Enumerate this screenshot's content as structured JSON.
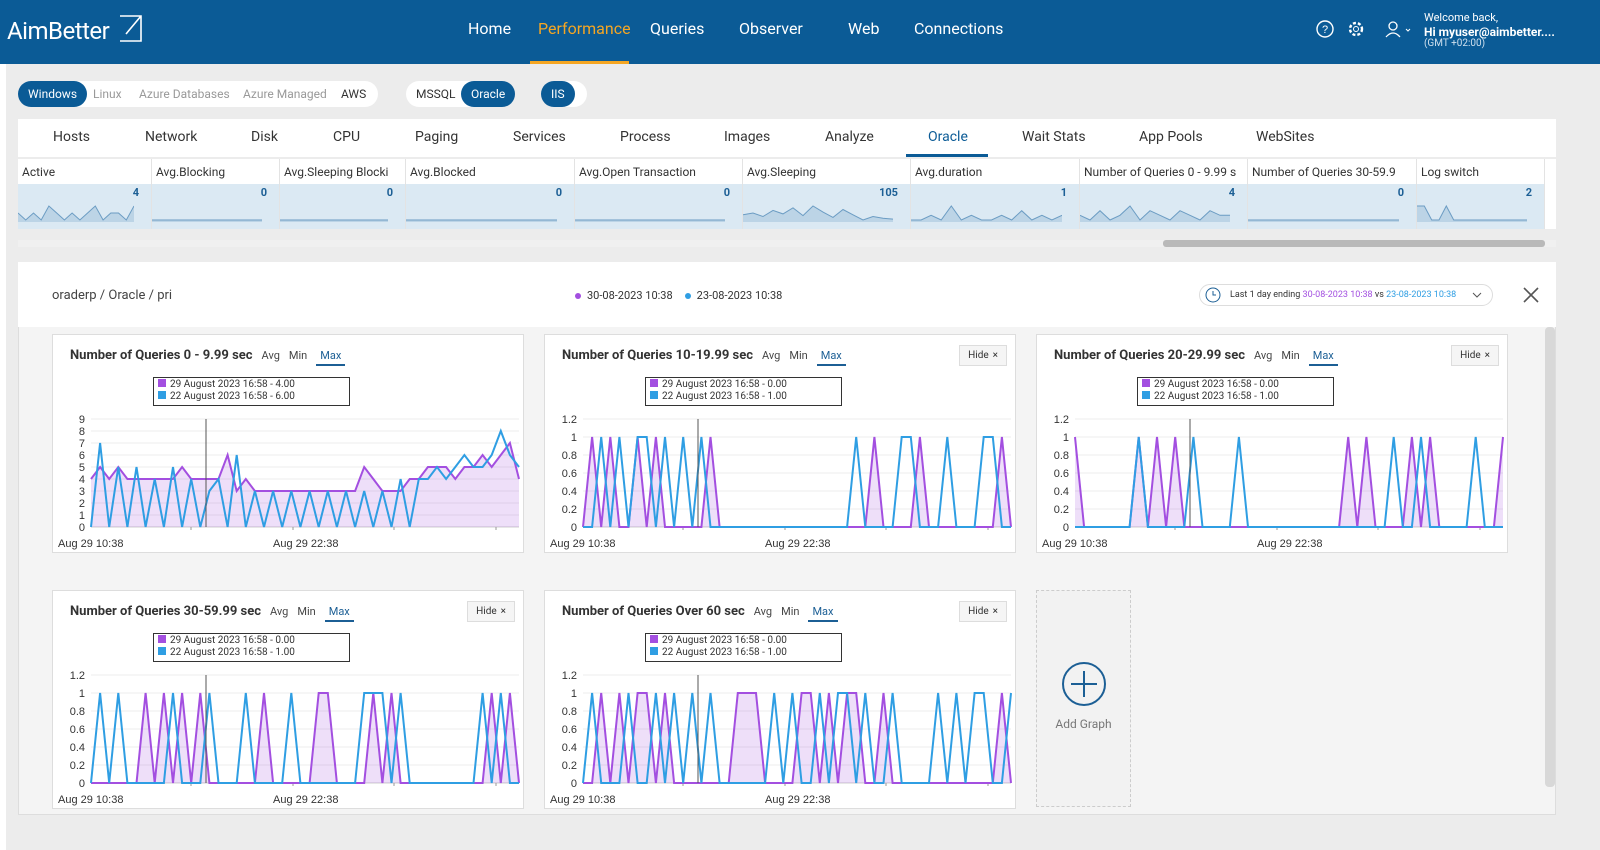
{
  "header": {
    "logo": "AimBetter",
    "nav": [
      "Home",
      "Performance",
      "Queries",
      "Observer",
      "Web",
      "Connections"
    ],
    "active_nav": 1,
    "welcome": "Welcome back,",
    "user": "Hi myuser@aimbetter....",
    "timezone": "(GMT +02:00)"
  },
  "platforms": [
    "Windows",
    "Linux",
    "Azure Databases",
    "Azure Managed",
    "AWS"
  ],
  "active_platform": 0,
  "databases": [
    "MSSQL",
    "Oracle"
  ],
  "active_database": 1,
  "web": [
    "IIS"
  ],
  "tabs": [
    "Hosts",
    "Network",
    "Disk",
    "CPU",
    "Paging",
    "Services",
    "Process",
    "Images",
    "Analyze",
    "Oracle",
    "Wait Stats",
    "App Pools",
    "WebSites"
  ],
  "active_tab": 9,
  "metrics": [
    {
      "name": "Active",
      "value": 4,
      "trend": [
        4,
        3,
        4,
        3,
        5,
        4,
        3,
        4,
        3,
        4,
        5,
        3,
        4,
        4,
        3,
        5
      ]
    },
    {
      "name": "Avg.Blocking",
      "value": 0,
      "trend": [
        0,
        0,
        0,
        0,
        0,
        0,
        0,
        0,
        0,
        0,
        0,
        0,
        0,
        0,
        0,
        0
      ]
    },
    {
      "name": "Avg.Sleeping Blocki",
      "value": 0,
      "trend": [
        0,
        0,
        0,
        0,
        0,
        0,
        0,
        0,
        0,
        0,
        0,
        0,
        0,
        0,
        0,
        0
      ]
    },
    {
      "name": "Avg.Blocked",
      "value": 0,
      "trend": [
        0,
        0,
        0,
        0,
        0,
        0,
        0,
        0,
        0,
        0,
        0,
        0,
        0,
        0,
        0,
        0
      ]
    },
    {
      "name": "Avg.Open Transaction",
      "value": 0,
      "trend": [
        0,
        0,
        0,
        0,
        0,
        0,
        0,
        0,
        0,
        0,
        0,
        0,
        0,
        0,
        0,
        0
      ]
    },
    {
      "name": "Avg.Sleeping",
      "value": 105,
      "trend": [
        110,
        112,
        108,
        115,
        111,
        118,
        109,
        120,
        113,
        107,
        116,
        110,
        104,
        108,
        106,
        105
      ]
    },
    {
      "name": "Avg.duration",
      "value": 1,
      "trend": [
        0,
        0,
        1,
        0,
        3,
        0,
        1,
        0,
        0,
        1,
        0,
        2,
        0,
        1,
        0,
        1
      ]
    },
    {
      "name": "Number of Queries 0 - 9.99 s",
      "value": 4,
      "trend": [
        4,
        3,
        5,
        3,
        4,
        6,
        3,
        5,
        4,
        3,
        5,
        4,
        3,
        5,
        4,
        4
      ]
    },
    {
      "name": "Number of Queries 30-59.9",
      "value": 0,
      "trend": [
        0,
        0,
        0,
        0,
        0,
        0,
        0,
        0,
        0,
        0,
        0,
        0,
        0,
        0,
        0,
        0
      ]
    },
    {
      "name": "Log switch",
      "value": 2,
      "trend": [
        5,
        5,
        2,
        2,
        5,
        2,
        2,
        2,
        2,
        2,
        2,
        2,
        2,
        2,
        2,
        2
      ]
    }
  ],
  "panel": {
    "breadcrumb": "oraderp / Oracle / pri",
    "compare": [
      {
        "date": "30-08-2023 10:38",
        "color": "#a34fe0"
      },
      {
        "date": "23-08-2023 10:38",
        "color": "#2f9ee3"
      }
    ],
    "range_prefix": "Last 1 day ending",
    "range_end": "30-08-2023 10:38",
    "range_vs": "vs",
    "range_start": "23-08-2023 10:38"
  },
  "charts": [
    {
      "title": "Number of Queries 0 - 9.99 sec",
      "modes": [
        "Avg",
        "Min",
        "Max"
      ],
      "active_mode": 2,
      "tooltip": [
        "29 August 2023 16:58 - 4.00",
        "22 August 2023 16:58 - 6.00"
      ],
      "ylim": [
        0,
        9
      ],
      "yticks": [
        0,
        1,
        2,
        3,
        4,
        5,
        6,
        7,
        8,
        9
      ],
      "xlabels": [
        "Aug 29 10:38",
        "Aug 29 22:38"
      ],
      "series": [
        {
          "color": "#a34fe0",
          "values": [
            4,
            5,
            4,
            5,
            4,
            4,
            4,
            4,
            4,
            4,
            5,
            4,
            4,
            4,
            4,
            6,
            3,
            4,
            3,
            3,
            3,
            3,
            3,
            3,
            3,
            3,
            3,
            3,
            3,
            3,
            5,
            4,
            3,
            3,
            3,
            4,
            4,
            5,
            5,
            5,
            4,
            5,
            5,
            6,
            5,
            6,
            7,
            4
          ]
        },
        {
          "color": "#2f9ee3",
          "values": [
            0,
            7,
            0,
            5,
            0,
            5,
            0,
            4,
            0,
            5,
            0,
            4,
            0,
            3,
            4,
            0,
            6,
            0,
            3,
            0,
            3,
            0,
            3,
            0,
            3,
            0,
            3,
            0,
            3,
            0,
            3,
            0,
            3,
            0,
            4,
            0,
            4,
            4,
            5,
            4,
            5,
            6,
            5,
            5,
            6,
            8,
            6,
            5
          ]
        }
      ]
    },
    {
      "title": "Number of Queries 10-19.99 sec",
      "modes": [
        "Avg",
        "Min",
        "Max"
      ],
      "active_mode": 2,
      "hide": "Hide",
      "tooltip": [
        "29 August 2023 16:58 - 0.00",
        "22 August 2023 16:58 - 1.00"
      ],
      "ylim": [
        0,
        1.2
      ],
      "yticks": [
        0,
        0.2,
        0.4,
        0.6,
        0.8,
        1,
        1.2
      ],
      "xlabels": [
        "Aug 29 10:38",
        "Aug 29 22:38"
      ],
      "series": [
        {
          "color": "#a34fe0",
          "values": [
            0,
            1,
            0,
            1,
            0,
            0,
            1,
            0,
            1,
            0,
            0,
            0,
            0,
            0,
            1,
            0,
            0,
            0,
            0,
            0,
            0,
            0,
            0,
            0,
            0,
            0,
            0,
            0,
            0,
            0,
            0,
            0,
            1,
            0,
            0,
            0,
            0,
            1,
            0,
            0,
            0,
            0,
            0,
            0,
            0,
            0,
            1,
            0
          ]
        },
        {
          "color": "#2f9ee3",
          "values": [
            0,
            0,
            1,
            0,
            1,
            0,
            1,
            1,
            0,
            1,
            0,
            1,
            0,
            1,
            0,
            0,
            0,
            0,
            0,
            0,
            0,
            0,
            0,
            0,
            0,
            0,
            0,
            0,
            0,
            0,
            1,
            0,
            0,
            0,
            0,
            1,
            1,
            0,
            0,
            0,
            1,
            0,
            0,
            0,
            1,
            1,
            0,
            0
          ]
        }
      ]
    },
    {
      "title": "Number of Queries 20-29.99 sec",
      "modes": [
        "Avg",
        "Min",
        "Max"
      ],
      "active_mode": 2,
      "hide": "Hide",
      "tooltip": [
        "29 August 2023 16:58 - 0.00",
        "22 August 2023 16:58 - 1.00"
      ],
      "ylim": [
        0,
        1.2
      ],
      "yticks": [
        0,
        0.2,
        0.4,
        0.6,
        0.8,
        1,
        1.2
      ],
      "xlabels": [
        "Aug 29 10:38",
        "Aug 29 22:38"
      ],
      "series": [
        {
          "color": "#a34fe0",
          "values": [
            1,
            0,
            0,
            0,
            0,
            0,
            0,
            1,
            0,
            1,
            0,
            1,
            0,
            0,
            0,
            0,
            0,
            0,
            0,
            0,
            0,
            0,
            0,
            0,
            0,
            0,
            0,
            0,
            0,
            0,
            1,
            0,
            1,
            0,
            0,
            0,
            0,
            1,
            0,
            1,
            0,
            0,
            0,
            0,
            0,
            0,
            0,
            1
          ]
        },
        {
          "color": "#2f9ee3",
          "values": [
            0,
            0,
            0,
            0,
            0,
            0,
            0,
            1,
            0,
            0,
            0,
            0,
            0,
            1,
            0,
            0,
            0,
            0,
            1,
            0,
            0,
            0,
            0,
            0,
            0,
            0,
            0,
            0,
            0,
            0,
            0,
            0,
            0,
            0,
            0,
            1,
            0,
            0,
            1,
            0,
            0,
            0,
            0,
            0,
            1,
            0,
            0,
            0
          ]
        }
      ]
    },
    {
      "title": "Number of Queries 30-59.99 sec",
      "modes": [
        "Avg",
        "Min",
        "Max"
      ],
      "active_mode": 2,
      "hide": "Hide",
      "tooltip": [
        "29 August 2023 16:58 - 0.00",
        "22 August 2023 16:58 - 1.00"
      ],
      "ylim": [
        0,
        1.2
      ],
      "yticks": [
        0,
        0.2,
        0.4,
        0.6,
        0.8,
        1,
        1.2
      ],
      "xlabels": [
        "Aug 29 10:38",
        "Aug 29 22:38"
      ],
      "series": [
        {
          "color": "#a34fe0",
          "values": [
            0,
            0,
            0,
            0,
            0,
            0,
            1,
            0,
            1,
            0,
            1,
            0,
            1,
            0,
            0,
            0,
            0,
            0,
            0,
            1,
            0,
            0,
            0,
            0,
            0,
            1,
            1,
            0,
            0,
            0,
            0,
            1,
            0,
            1,
            0,
            0,
            0,
            0,
            0,
            0,
            0,
            0,
            0,
            0,
            1,
            0,
            1,
            0
          ]
        },
        {
          "color": "#2f9ee3",
          "values": [
            0,
            1,
            0,
            1,
            0,
            0,
            0,
            0,
            0,
            1,
            0,
            0,
            0,
            1,
            0,
            0,
            0,
            1,
            0,
            0,
            0,
            0,
            1,
            0,
            0,
            0,
            0,
            0,
            0,
            0,
            1,
            1,
            1,
            0,
            1,
            0,
            0,
            0,
            0,
            0,
            0,
            0,
            0,
            1,
            0,
            1,
            0,
            0
          ]
        }
      ]
    },
    {
      "title": "Number of Queries Over 60 sec",
      "modes": [
        "Avg",
        "Min",
        "Max"
      ],
      "active_mode": 2,
      "hide": "Hide",
      "tooltip": [
        "29 August 2023 16:58 - 0.00",
        "22 August 2023 16:58 - 1.00"
      ],
      "ylim": [
        0,
        1.2
      ],
      "yticks": [
        0,
        0.2,
        0.4,
        0.6,
        0.8,
        1,
        1.2
      ],
      "xlabels": [
        "Aug 29 10:38",
        "Aug 29 22:38"
      ],
      "series": [
        {
          "color": "#a34fe0",
          "values": [
            0,
            0,
            1,
            0,
            1,
            0,
            1,
            1,
            0,
            1,
            0,
            0,
            0,
            0,
            0,
            0,
            0,
            1,
            1,
            1,
            0,
            0,
            0,
            0,
            1,
            1,
            0,
            1,
            0,
            1,
            1,
            0,
            0,
            1,
            0,
            0,
            0,
            0,
            0,
            0,
            0,
            0,
            0,
            0,
            0,
            0,
            1,
            0
          ]
        },
        {
          "color": "#2f9ee3",
          "values": [
            0,
            1,
            0,
            0,
            0,
            1,
            0,
            0,
            1,
            0,
            1,
            0,
            1,
            0,
            1,
            0,
            0,
            0,
            0,
            0,
            0,
            1,
            0,
            1,
            0,
            0,
            1,
            0,
            1,
            1,
            0,
            1,
            0,
            0,
            1,
            0,
            0,
            0,
            0,
            1,
            0,
            1,
            0,
            1,
            1,
            0,
            0,
            1
          ]
        }
      ]
    }
  ],
  "add_graph": "Add Graph"
}
